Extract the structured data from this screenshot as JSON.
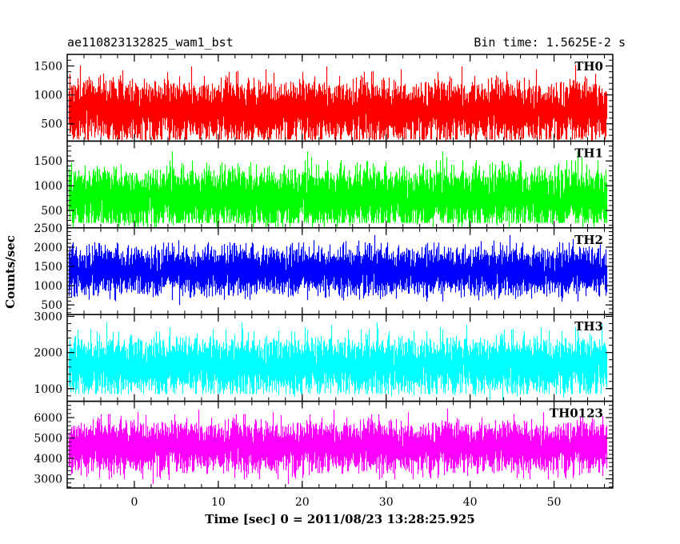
{
  "header": {
    "title": "ae110823132825_wam1_bst",
    "bin_time": "Bin time: 1.5625E-2 s"
  },
  "chart_data": {
    "type": "line",
    "title": "ae110823132825_wam1_bst",
    "subtitle": "Bin time: 1.5625E-2 s",
    "xlabel": "Time [sec] 0 = 2011/08/23 13:28:25.925",
    "ylabel": "Counts/sec",
    "xlim": [
      -8.0,
      57.0
    ],
    "xticks": [
      0,
      10,
      20,
      30,
      40,
      50
    ],
    "data_x_range": [
      -7.8,
      56.2
    ],
    "panels": [
      {
        "name": "TH0",
        "color": "#ff0000",
        "ylim": [
          200,
          1700
        ],
        "yticks": [
          500,
          1000,
          1500
        ],
        "mean": 730,
        "low": 230,
        "high": 1650
      },
      {
        "name": "TH1",
        "color": "#00ff00",
        "ylim": [
          150,
          1900
        ],
        "yticks": [
          500,
          1000,
          1500
        ],
        "mean": 760,
        "low": 250,
        "high": 1850
      },
      {
        "name": "TH2",
        "color": "#0000ff",
        "ylim": [
          250,
          2500
        ],
        "yticks": [
          500,
          1000,
          1500,
          2000,
          2500
        ],
        "mean": 1380,
        "low": 400,
        "high": 2450
      },
      {
        "name": "TH3",
        "color": "#00ffff",
        "ylim": [
          650,
          3050
        ],
        "yticks": [
          1000,
          2000,
          3000
        ],
        "mean": 1650,
        "low": 850,
        "high": 3000
      },
      {
        "name": "TH0123",
        "color": "#ff00ff",
        "ylim": [
          2550,
          6800
        ],
        "yticks": [
          3000,
          4000,
          5000,
          6000
        ],
        "mean": 4600,
        "low": 2700,
        "high": 6750
      }
    ]
  }
}
